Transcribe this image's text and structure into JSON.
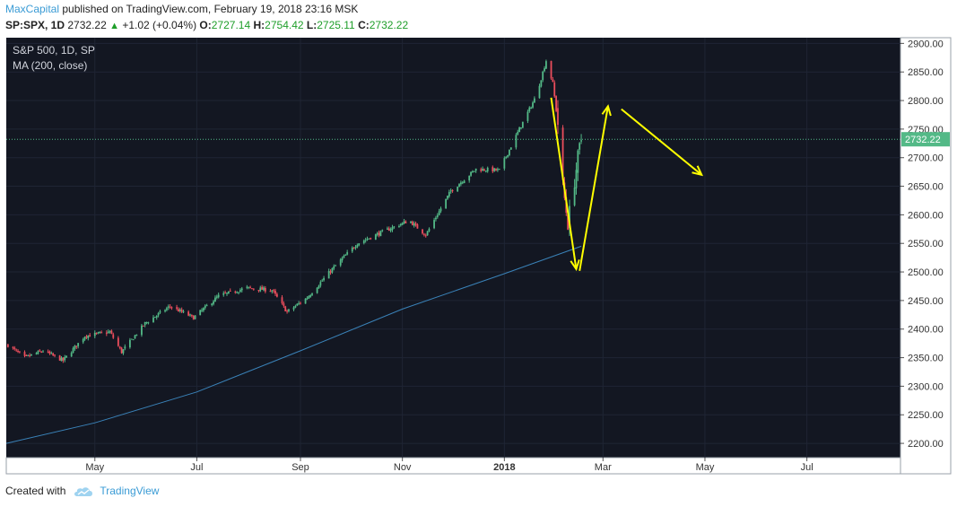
{
  "header": {
    "author": "MaxCapital",
    "published_text": "published on TradingView.com, February 19, 2018 23:16 MSK",
    "symbol": "SP:SPX, 1D",
    "last": "2732.22",
    "change": "+1.02 (+0.04%)",
    "o_label": "O:",
    "o": "2727.14",
    "h_label": "H:",
    "h": "2754.42",
    "l_label": "L:",
    "l": "2725.11",
    "c_label": "C:",
    "c": "2732.22"
  },
  "legend": {
    "line1": "S&P 500, 1D, SP",
    "line2": "MA (200, close)"
  },
  "footer": {
    "created_with": "Created with",
    "brand": "TradingView"
  },
  "colors": {
    "background": "#131722",
    "grid": "#1f2534",
    "up": "#53b987",
    "down": "#eb4d5c",
    "ma": "#3a82b8",
    "arrow": "#ffff00",
    "price_line": "#53b987"
  },
  "chart_data": {
    "type": "candlestick",
    "title": "S&P 500, 1D, SP",
    "ylim": [
      2175,
      2910
    ],
    "y_ticks": [
      "2200.00",
      "2250.00",
      "2300.00",
      "2350.00",
      "2400.00",
      "2450.00",
      "2500.00",
      "2550.00",
      "2600.00",
      "2650.00",
      "2700.00",
      "2750.00",
      "2800.00",
      "2850.00",
      "2900.00"
    ],
    "x_ticks": [
      "May",
      "Jul",
      "Sep",
      "Nov",
      "2018",
      "Mar",
      "May",
      "Jul"
    ],
    "x_tick_dates": [
      "2017-05-01",
      "2017-07-01",
      "2017-09-01",
      "2017-11-01",
      "2018-01-01",
      "2018-03-01",
      "2018-05-01",
      "2018-07-01"
    ],
    "x_range": [
      "2017-03-09",
      "2018-08-26"
    ],
    "last_price_label": "2732.22",
    "last_price": 2732.22,
    "close_path": [
      [
        "2017-03-10",
        2372
      ],
      [
        "2017-03-20",
        2350
      ],
      [
        "2017-03-31",
        2362
      ],
      [
        "2017-04-12",
        2345
      ],
      [
        "2017-04-25",
        2388
      ],
      [
        "2017-05-10",
        2395
      ],
      [
        "2017-05-17",
        2360
      ],
      [
        "2017-05-31",
        2410
      ],
      [
        "2017-06-15",
        2440
      ],
      [
        "2017-06-29",
        2420
      ],
      [
        "2017-07-14",
        2458
      ],
      [
        "2017-07-31",
        2472
      ],
      [
        "2017-08-15",
        2468
      ],
      [
        "2017-08-24",
        2430
      ],
      [
        "2017-09-05",
        2455
      ],
      [
        "2017-09-20",
        2505
      ],
      [
        "2017-10-05",
        2550
      ],
      [
        "2017-10-20",
        2570
      ],
      [
        "2017-11-05",
        2590
      ],
      [
        "2017-11-15",
        2565
      ],
      [
        "2017-11-30",
        2642
      ],
      [
        "2017-12-15",
        2680
      ],
      [
        "2017-12-29",
        2678
      ],
      [
        "2018-01-10",
        2750
      ],
      [
        "2018-01-20",
        2808
      ],
      [
        "2018-01-26",
        2870
      ],
      [
        "2018-01-30",
        2830
      ],
      [
        "2018-02-02",
        2760
      ],
      [
        "2018-02-05",
        2650
      ],
      [
        "2018-02-08",
        2585
      ],
      [
        "2018-02-12",
        2660
      ],
      [
        "2018-02-14",
        2700
      ],
      [
        "2018-02-16",
        2732
      ]
    ],
    "series": [
      {
        "name": "MA (200, close)",
        "type": "line",
        "points": [
          [
            "2017-03-09",
            2200
          ],
          [
            "2017-05-01",
            2236
          ],
          [
            "2017-07-01",
            2290
          ],
          [
            "2017-09-01",
            2362
          ],
          [
            "2017-11-01",
            2435
          ],
          [
            "2018-01-01",
            2497
          ],
          [
            "2018-02-16",
            2545
          ]
        ]
      }
    ],
    "annotations": [
      {
        "type": "arrow",
        "from": [
          "2018-01-29",
          2805
        ],
        "to": [
          "2018-02-13",
          2505
        ]
      },
      {
        "type": "arrow",
        "from": [
          "2018-02-15",
          2502
        ],
        "to": [
          "2018-03-04",
          2790
        ]
      },
      {
        "type": "arrow",
        "from": [
          "2018-03-12",
          2785
        ],
        "to": [
          "2018-04-29",
          2670
        ]
      }
    ]
  }
}
